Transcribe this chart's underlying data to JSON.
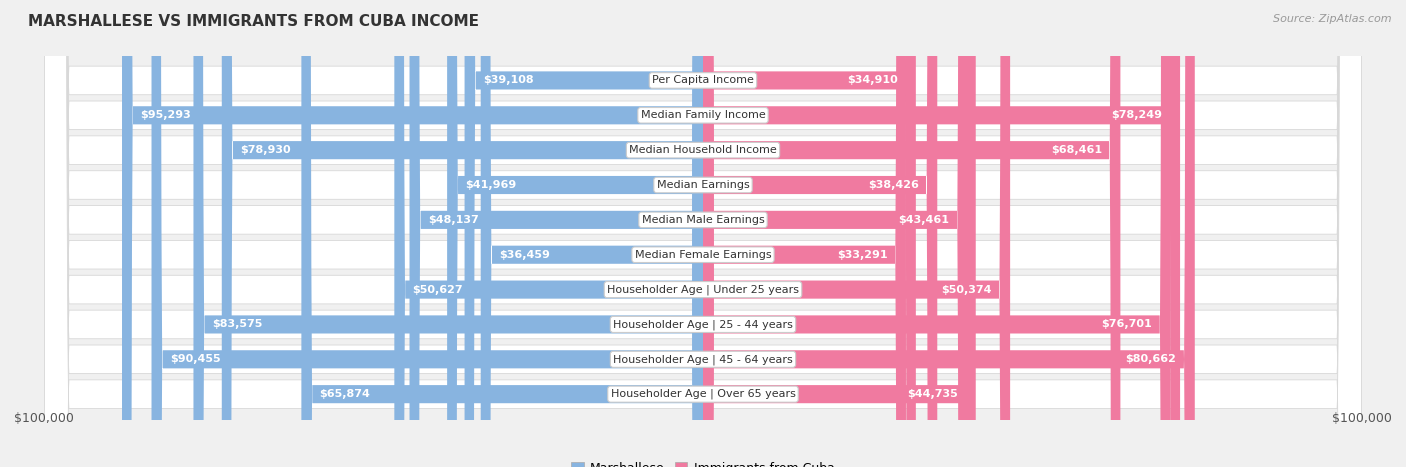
{
  "title": "MARSHALLESE VS IMMIGRANTS FROM CUBA INCOME",
  "source": "Source: ZipAtlas.com",
  "categories": [
    "Per Capita Income",
    "Median Family Income",
    "Median Household Income",
    "Median Earnings",
    "Median Male Earnings",
    "Median Female Earnings",
    "Householder Age | Under 25 years",
    "Householder Age | 25 - 44 years",
    "Householder Age | 45 - 64 years",
    "Householder Age | Over 65 years"
  ],
  "marshallese_values": [
    39108,
    95293,
    78930,
    41969,
    48137,
    36459,
    50627,
    83575,
    90455,
    65874
  ],
  "cuba_values": [
    34910,
    78249,
    68461,
    38426,
    43461,
    33291,
    50374,
    76701,
    80662,
    44735
  ],
  "marshallese_labels": [
    "$39,108",
    "$95,293",
    "$78,930",
    "$41,969",
    "$48,137",
    "$36,459",
    "$50,627",
    "$83,575",
    "$90,455",
    "$65,874"
  ],
  "cuba_labels": [
    "$34,910",
    "$78,249",
    "$68,461",
    "$38,426",
    "$43,461",
    "$33,291",
    "$50,374",
    "$76,701",
    "$80,662",
    "$44,735"
  ],
  "max_value": 100000,
  "marshallese_color": "#88b4e0",
  "cuba_color": "#f07aa0",
  "bg_color": "#f0f0f0",
  "row_bg": "#ffffff",
  "row_border": "#d8d8d8",
  "legend_marshallese": "Marshallese",
  "legend_cuba": "Immigrants from Cuba",
  "xlabel_left": "$100,000",
  "xlabel_right": "$100,000",
  "inside_label_threshold": 18000,
  "title_fontsize": 11,
  "label_fontsize": 8,
  "cat_fontsize": 8
}
